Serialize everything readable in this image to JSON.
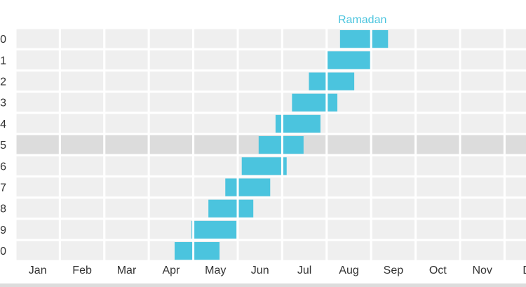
{
  "chart_data": {
    "type": "timeline",
    "categories": [
      "Jan",
      "Feb",
      "Mar",
      "Apr",
      "May",
      "Jun",
      "Jul",
      "Aug",
      "Sep",
      "Oct",
      "Nov",
      "D"
    ],
    "series": [
      {
        "name": "Ramadan",
        "color": "#4bc4de",
        "rows": [
          {
            "label": "0",
            "start": 7.3,
            "end": 8.38
          },
          {
            "label": "1",
            "start": 7.02,
            "end": 8.0
          },
          {
            "label": "2",
            "start": 6.6,
            "end": 7.62
          },
          {
            "label": "3",
            "start": 6.22,
            "end": 7.24
          },
          {
            "label": "4",
            "start": 5.85,
            "end": 6.86
          },
          {
            "label": "5",
            "start": 5.47,
            "end": 6.48
          },
          {
            "label": "6",
            "start": 5.09,
            "end": 6.1
          },
          {
            "label": "7",
            "start": 4.72,
            "end": 5.73
          },
          {
            "label": "8",
            "start": 4.34,
            "end": 5.35
          },
          {
            "label": "9",
            "start": 3.96,
            "end": 4.97
          },
          {
            "label": "0",
            "start": 3.58,
            "end": 4.59
          }
        ]
      }
    ],
    "highlighted_row": 5,
    "colors": {
      "cell": "#efefef",
      "cell_highlight": "#dcdcdc",
      "label_accent": "#3a78c0"
    }
  }
}
